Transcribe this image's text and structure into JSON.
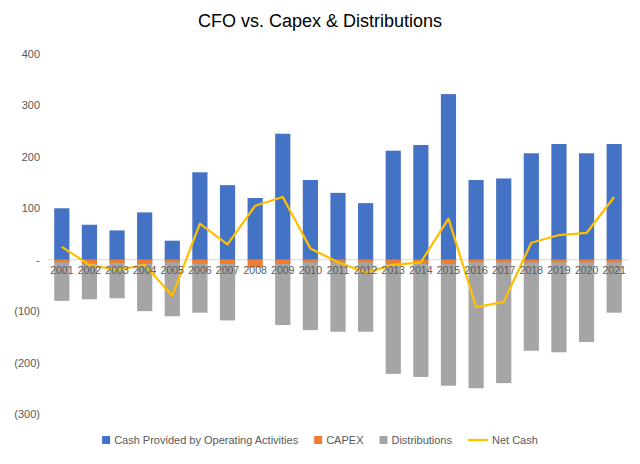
{
  "chart_data": {
    "type": "bar",
    "title": "CFO vs. Capex & Distributions",
    "categories": [
      "2001",
      "2002",
      "2003",
      "2004",
      "2005",
      "2006",
      "2007",
      "2008",
      "2009",
      "2010",
      "2011",
      "2012",
      "2013",
      "2014",
      "2015",
      "2016",
      "2017",
      "2018",
      "2019",
      "2020",
      "2021"
    ],
    "series": [
      {
        "name": "Cash Provided by Operating Activities",
        "color": "#4472c4",
        "type": "bar",
        "values": [
          100,
          68,
          57,
          92,
          37,
          170,
          145,
          120,
          245,
          155,
          130,
          110,
          212,
          223,
          322,
          155,
          158,
          207,
          225,
          207,
          225
        ]
      },
      {
        "name": "CAPEX",
        "color": "#ed7d31",
        "type": "bar",
        "values": [
          -5,
          -8,
          -6,
          -8,
          -5,
          -8,
          -8,
          -15,
          -8,
          -5,
          -5,
          -5,
          -8,
          -8,
          -8,
          -5,
          -5,
          -5,
          -5,
          -5,
          -5
        ]
      },
      {
        "name": "Distributions",
        "color": "#a5a5a5",
        "type": "bar",
        "values": [
          -80,
          -77,
          -75,
          -100,
          -110,
          -103,
          -118,
          0,
          -127,
          -137,
          -140,
          -140,
          -222,
          -228,
          -245,
          -250,
          -240,
          -177,
          -180,
          -160,
          -103
        ]
      },
      {
        "name": "Net Cash",
        "color": "#ffc000",
        "type": "line",
        "values": [
          25,
          -10,
          -20,
          -10,
          -70,
          70,
          30,
          105,
          122,
          22,
          -5,
          -25,
          -10,
          -5,
          80,
          -92,
          -82,
          33,
          48,
          52,
          122
        ]
      }
    ],
    "ylim": [
      -300,
      400
    ],
    "yticks": [
      400,
      300,
      200,
      100,
      {
        "value": 0,
        "label": "-"
      },
      {
        "value": -100,
        "label": "(100)"
      },
      {
        "value": -200,
        "label": "(200)"
      },
      {
        "value": -300,
        "label": "(300)"
      }
    ],
    "grid": false,
    "legend": "bottom"
  }
}
